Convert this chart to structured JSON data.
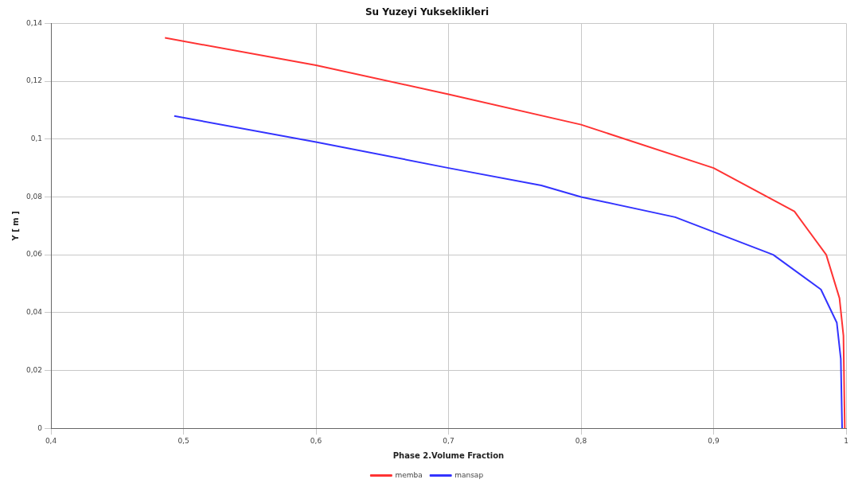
{
  "chart_data": {
    "type": "line",
    "title": "Su Yuzeyi Yukseklikleri",
    "xlabel": "Phase 2.Volume Fraction",
    "ylabel": "Y [ m ]",
    "xlim": [
      0.4,
      1.0
    ],
    "xticks": [
      {
        "value": 0.4,
        "label": "0,4"
      },
      {
        "value": 0.5,
        "label": "0,5"
      },
      {
        "value": 0.6,
        "label": "0,6"
      },
      {
        "value": 0.7,
        "label": "0,7"
      },
      {
        "value": 0.8,
        "label": "0,8"
      },
      {
        "value": 0.9,
        "label": "0,9"
      },
      1
    ],
    "ylim": [
      0,
      0.14
    ],
    "yticks": [
      0,
      {
        "value": 0.02,
        "label": "0,02"
      },
      {
        "value": 0.04,
        "label": "0,04"
      },
      {
        "value": 0.06,
        "label": "0,06"
      },
      {
        "value": 0.08,
        "label": "0,08"
      },
      {
        "value": 0.1,
        "label": "0,1"
      },
      {
        "value": 0.12,
        "label": "0,12"
      },
      {
        "value": 0.14,
        "label": "0,14"
      }
    ],
    "grid": true,
    "legend": "bottom",
    "marker": "none",
    "line_style": "solid",
    "series": [
      {
        "name": "memba",
        "color": "#ff3333",
        "x": [
          0.486,
          0.6,
          0.7,
          0.8,
          0.9,
          0.961,
          0.985,
          0.995,
          0.998,
          0.999
        ],
        "values": [
          0.135,
          0.1255,
          0.1155,
          0.105,
          0.09,
          0.075,
          0.06,
          0.045,
          0.032,
          0
        ]
      },
      {
        "name": "mansap",
        "color": "#3333ff",
        "x": [
          0.493,
          0.6,
          0.7,
          0.77,
          0.8,
          0.871,
          0.945,
          0.981,
          0.993,
          0.996,
          0.997
        ],
        "values": [
          0.108,
          0.099,
          0.09,
          0.084,
          0.08,
          0.073,
          0.06,
          0.048,
          0.0365,
          0.024,
          0
        ]
      }
    ]
  }
}
